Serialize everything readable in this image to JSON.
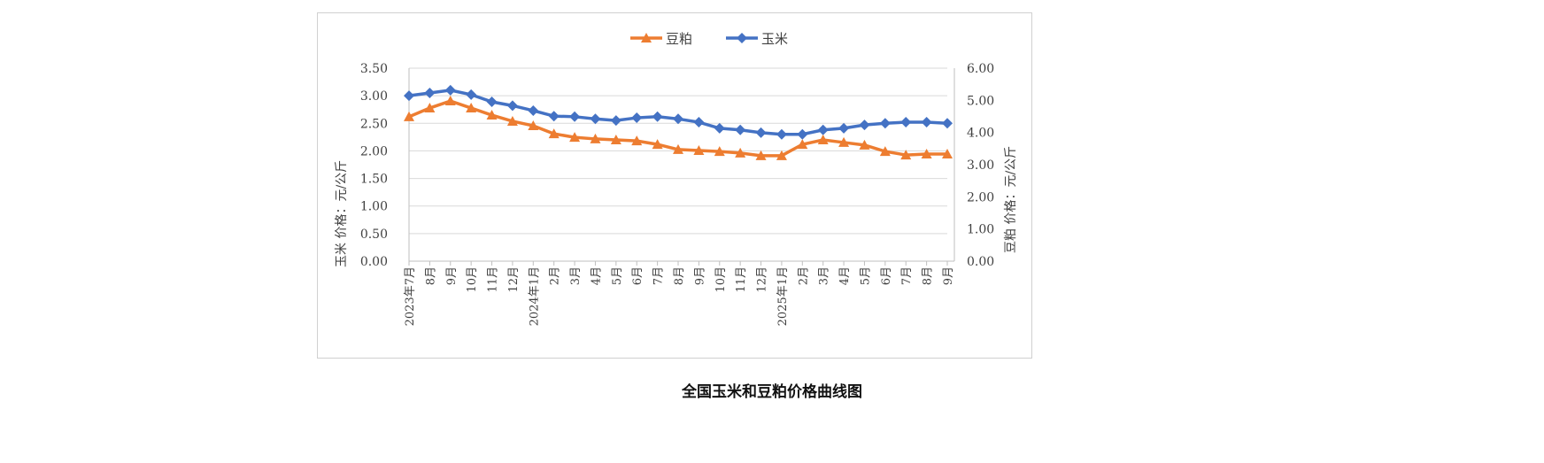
{
  "chart_data": {
    "type": "line",
    "title": "全国玉米和豆粕价格曲线图",
    "legend": [
      {
        "name": "豆粕",
        "color": "#ED7D31",
        "marker": "triangle"
      },
      {
        "name": "玉米",
        "color": "#4472C4",
        "marker": "diamond"
      }
    ],
    "legend_position": "top",
    "y_left_label": "玉米  价格：元/公斤",
    "y_right_label": "豆粕  价格：元/公斤",
    "y_left_ticks": [
      "0.00",
      "0.50",
      "1.00",
      "1.50",
      "2.00",
      "2.50",
      "3.00",
      "3.50"
    ],
    "y_right_ticks": [
      "0.00",
      "1.00",
      "2.00",
      "3.00",
      "4.00",
      "5.00",
      "6.00"
    ],
    "ylim_left": [
      0,
      3.5
    ],
    "ylim_right": [
      0,
      6
    ],
    "categories": [
      "2023年7月",
      "8月",
      "9月",
      "10月",
      "11月",
      "12月",
      "2024年1月",
      "2月",
      "3月",
      "4月",
      "5月",
      "6月",
      "7月",
      "8月",
      "9月",
      "10月",
      "11月",
      "12月",
      "2025年1月",
      "2月",
      "3月",
      "4月",
      "5月",
      "6月",
      "7月",
      "8月",
      "9月"
    ],
    "series": [
      {
        "name": "玉米",
        "axis": "left",
        "values": [
          3.0,
          3.05,
          3.1,
          3.02,
          2.89,
          2.82,
          2.73,
          2.63,
          2.62,
          2.58,
          2.55,
          2.6,
          2.62,
          2.58,
          2.52,
          2.41,
          2.38,
          2.33,
          2.3,
          2.3,
          2.38,
          2.41,
          2.47,
          2.5,
          2.52,
          2.52,
          2.5
        ]
      },
      {
        "name": "豆粕",
        "axis": "right",
        "values": [
          4.49,
          4.76,
          4.98,
          4.76,
          4.54,
          4.35,
          4.21,
          3.96,
          3.85,
          3.8,
          3.77,
          3.74,
          3.63,
          3.47,
          3.44,
          3.41,
          3.36,
          3.28,
          3.28,
          3.63,
          3.77,
          3.69,
          3.61,
          3.41,
          3.3,
          3.33,
          3.33
        ]
      }
    ],
    "grid": true
  }
}
